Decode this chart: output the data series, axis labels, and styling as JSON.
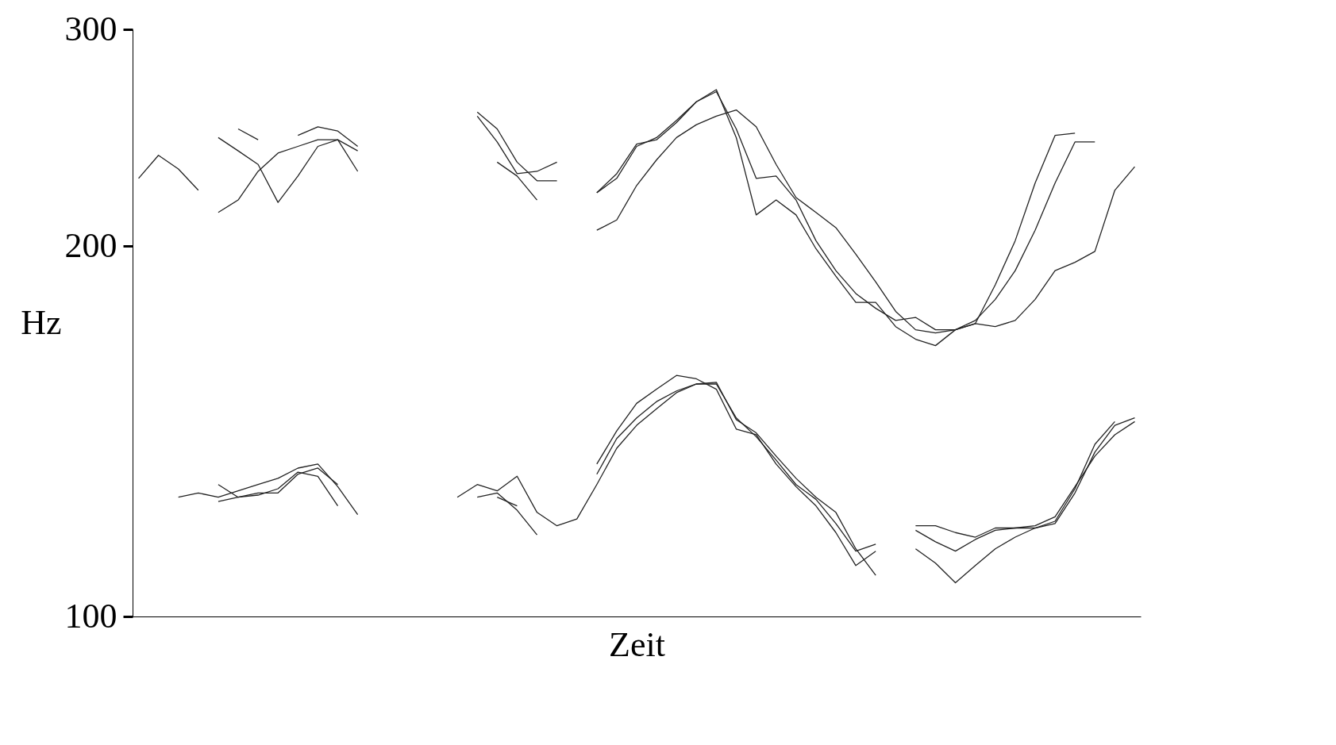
{
  "chart_data": {
    "type": "line",
    "xlabel": "Zeit",
    "ylabel": "Hz",
    "log": true,
    "ylim": [
      100,
      300
    ],
    "yticks": [
      100,
      200,
      300
    ],
    "tick_labels": "y",
    "grid": false,
    "legend": false,
    "categories": [
      null,
      null,
      null,
      null,
      null,
      null,
      null,
      null,
      null,
      null,
      null,
      null,
      null,
      null,
      null,
      null,
      null,
      null,
      null,
      null,
      null,
      null,
      null,
      null,
      null,
      null,
      null,
      null,
      null,
      null,
      null,
      null,
      null,
      null,
      null,
      null,
      null,
      null,
      null,
      null,
      null,
      null,
      null,
      null,
      null,
      null,
      null,
      null,
      null,
      null,
      null
    ],
    "series": [
      {
        "color": "#222222",
        "values": [
          227,
          237,
          231,
          222,
          null,
          null,
          null,
          null,
          null,
          null,
          null,
          null,
          null,
          null,
          null,
          null,
          null,
          null,
          null,
          null,
          null,
          null,
          null,
          null,
          null,
          null,
          null,
          null,
          null,
          null,
          null,
          null,
          null,
          null,
          null,
          null,
          null,
          null,
          null,
          null,
          null,
          null,
          null,
          null,
          null,
          null,
          null,
          null,
          null,
          null,
          null
        ]
      },
      {
        "color": "#222222",
        "values": [
          null,
          null,
          null,
          null,
          null,
          249,
          244,
          null,
          null,
          null,
          null,
          null,
          null,
          null,
          null,
          null,
          null,
          null,
          null,
          null,
          null,
          null,
          null,
          null,
          null,
          null,
          null,
          null,
          null,
          null,
          null,
          null,
          null,
          null,
          null,
          null,
          null,
          null,
          null,
          null,
          null,
          null,
          null,
          null,
          null,
          null,
          null,
          null,
          null,
          null,
          null
        ]
      },
      {
        "color": "#222222",
        "values": [
          null,
          null,
          null,
          null,
          null,
          null,
          null,
          null,
          246,
          250,
          248,
          241,
          null,
          null,
          null,
          null,
          null,
          null,
          null,
          null,
          null,
          null,
          null,
          null,
          null,
          null,
          null,
          null,
          null,
          null,
          null,
          null,
          null,
          null,
          null,
          null,
          null,
          null,
          null,
          null,
          null,
          null,
          null,
          null,
          null,
          null,
          null,
          null,
          null,
          null,
          null
        ]
      },
      {
        "color": "#222222",
        "values": [
          null,
          null,
          null,
          null,
          null,
          null,
          null,
          null,
          null,
          null,
          null,
          null,
          null,
          null,
          null,
          null,
          null,
          257,
          249,
          234,
          226,
          226,
          null,
          null,
          null,
          null,
          null,
          null,
          null,
          null,
          null,
          null,
          null,
          null,
          null,
          null,
          null,
          null,
          null,
          null,
          null,
          null,
          null,
          null,
          null,
          null,
          null,
          null,
          null,
          null,
          null
        ]
      },
      {
        "color": "#222222",
        "values": [
          null,
          null,
          null,
          null,
          null,
          null,
          null,
          null,
          null,
          null,
          null,
          null,
          null,
          null,
          null,
          null,
          null,
          null,
          null,
          null,
          null,
          null,
          null,
          221,
          229,
          242,
          244,
          252,
          262,
          268,
          245,
          212,
          218,
          212,
          199,
          189,
          180,
          180,
          172,
          168,
          166,
          171,
          173,
          186,
          202,
          225,
          246,
          247,
          null,
          null,
          null
        ]
      },
      {
        "color": "#222222",
        "values": [
          null,
          null,
          null,
          null,
          245,
          239,
          233,
          217,
          228,
          241,
          244,
          230,
          null,
          null,
          null,
          null,
          null,
          null,
          null,
          null,
          null,
          null,
          null,
          null,
          null,
          null,
          null,
          null,
          null,
          null,
          null,
          null,
          null,
          null,
          null,
          null,
          null,
          null,
          null,
          null,
          null,
          null,
          null,
          null,
          null,
          null,
          null,
          null,
          null,
          null,
          null
        ]
      },
      {
        "color": "#222222",
        "values": [
          null,
          null,
          null,
          null,
          null,
          null,
          null,
          null,
          null,
          null,
          null,
          null,
          null,
          null,
          null,
          null,
          null,
          255,
          243,
          229,
          230,
          234,
          null,
          null,
          null,
          null,
          null,
          null,
          null,
          null,
          null,
          null,
          null,
          null,
          null,
          null,
          null,
          null,
          null,
          null,
          null,
          null,
          null,
          null,
          null,
          null,
          null,
          null,
          null,
          null,
          null
        ]
      },
      {
        "color": "#222222",
        "values": [
          null,
          null,
          null,
          null,
          null,
          null,
          null,
          null,
          null,
          null,
          null,
          null,
          null,
          null,
          null,
          null,
          null,
          null,
          null,
          null,
          null,
          null,
          null,
          221,
          227,
          241,
          245,
          253,
          262,
          267,
          249,
          227,
          228,
          218,
          202,
          191,
          183,
          178,
          174,
          175,
          171,
          171,
          174,
          181,
          191,
          206,
          225,
          243,
          243,
          null,
          null
        ]
      },
      {
        "color": "#222222",
        "values": [
          null,
          null,
          null,
          null,
          213,
          218,
          230,
          238,
          241,
          244,
          244,
          239,
          null,
          null,
          null,
          null,
          null,
          null,
          null,
          null,
          null,
          null,
          null,
          null,
          null,
          null,
          null,
          null,
          null,
          null,
          null,
          null,
          null,
          null,
          null,
          null,
          null,
          null,
          null,
          null,
          null,
          null,
          null,
          null,
          null,
          null,
          null,
          null,
          null,
          null,
          null
        ]
      },
      {
        "color": "#222222",
        "values": [
          null,
          null,
          null,
          null,
          null,
          null,
          null,
          null,
          null,
          null,
          null,
          null,
          null,
          null,
          null,
          null,
          null,
          null,
          234,
          228,
          218,
          null,
          null,
          null,
          null,
          null,
          null,
          null,
          null,
          null,
          null,
          null,
          null,
          null,
          null,
          null,
          null,
          null,
          null,
          null,
          null,
          null,
          null,
          null,
          null,
          null,
          null,
          null,
          null,
          null,
          null
        ]
      },
      {
        "color": "#222222",
        "values": [
          null,
          null,
          null,
          null,
          null,
          null,
          null,
          null,
          null,
          null,
          null,
          null,
          null,
          null,
          null,
          null,
          null,
          null,
          null,
          null,
          null,
          null,
          null,
          206,
          210,
          224,
          235,
          245,
          251,
          255,
          258,
          250,
          233,
          219,
          213,
          207,
          197,
          187,
          177,
          171,
          170,
          171,
          173,
          172,
          174,
          181,
          191,
          194,
          198,
          222,
          232
        ]
      },
      {
        "color": "#222222",
        "values": [
          null,
          null,
          125,
          126,
          125,
          126.5,
          128,
          129.5,
          132,
          133,
          127.5,
          121,
          null,
          null,
          null,
          null,
          null,
          null,
          null,
          null,
          null,
          null,
          null,
          null,
          null,
          null,
          null,
          null,
          null,
          null,
          null,
          null,
          null,
          null,
          null,
          null,
          null,
          null,
          null,
          null,
          null,
          null,
          null,
          null,
          null,
          null,
          null,
          null,
          null,
          null,
          null
        ]
      },
      {
        "color": "#222222",
        "values": [
          null,
          null,
          null,
          null,
          null,
          null,
          null,
          null,
          null,
          null,
          null,
          null,
          null,
          null,
          null,
          null,
          125,
          128,
          126.5,
          130,
          121.5,
          118.5,
          120,
          128,
          137,
          143,
          147.5,
          152,
          154.5,
          154.5,
          145,
          140,
          134,
          128,
          124.5,
          119,
          113,
          114.5,
          null,
          null,
          null,
          null,
          null,
          null,
          null,
          null,
          null,
          null,
          null,
          null,
          null
        ]
      },
      {
        "color": "#222222",
        "values": [
          null,
          null,
          null,
          null,
          null,
          null,
          null,
          null,
          null,
          null,
          null,
          null,
          null,
          null,
          null,
          null,
          null,
          null,
          null,
          null,
          null,
          null,
          null,
          null,
          null,
          null,
          null,
          null,
          null,
          null,
          null,
          null,
          null,
          null,
          null,
          null,
          null,
          null,
          null,
          117.5,
          115,
          113,
          115.5,
          117.5,
          118,
          118,
          119.5,
          127,
          138,
          144,
          null
        ]
      },
      {
        "color": "#222222",
        "values": [
          null,
          null,
          null,
          null,
          128,
          125,
          125.5,
          127,
          131,
          130,
          123,
          null,
          null,
          null,
          null,
          null,
          null,
          null,
          null,
          null,
          null,
          null,
          null,
          null,
          null,
          null,
          null,
          null,
          null,
          null,
          null,
          null,
          null,
          null,
          null,
          null,
          null,
          null,
          null,
          null,
          null,
          null,
          null,
          null,
          null,
          null,
          null,
          null,
          null,
          null,
          null
        ]
      },
      {
        "color": "#222222",
        "values": [
          null,
          null,
          null,
          null,
          null,
          null,
          null,
          null,
          null,
          null,
          null,
          null,
          null,
          null,
          null,
          null,
          null,
          125,
          126,
          122,
          116.5,
          null,
          null,
          null,
          null,
          null,
          null,
          null,
          null,
          null,
          null,
          null,
          null,
          null,
          null,
          null,
          null,
          null,
          null,
          null,
          null,
          null,
          null,
          null,
          null,
          null,
          null,
          null,
          null,
          null,
          null
        ]
      },
      {
        "color": "#222222",
        "values": [
          null,
          null,
          null,
          null,
          null,
          null,
          null,
          null,
          null,
          null,
          null,
          null,
          null,
          null,
          null,
          null,
          null,
          null,
          null,
          null,
          null,
          null,
          null,
          133,
          141.5,
          149,
          153,
          157,
          156,
          153,
          142,
          140.5,
          133,
          127.5,
          123,
          117,
          110,
          113,
          null,
          null,
          null,
          null,
          null,
          null,
          null,
          null,
          null,
          null,
          null,
          null,
          null
        ]
      },
      {
        "color": "#222222",
        "values": [
          null,
          null,
          null,
          null,
          null,
          null,
          null,
          null,
          null,
          null,
          null,
          null,
          null,
          null,
          null,
          null,
          null,
          null,
          null,
          null,
          null,
          null,
          null,
          null,
          null,
          null,
          null,
          null,
          null,
          null,
          null,
          null,
          null,
          null,
          null,
          null,
          null,
          null,
          null,
          113.5,
          110.5,
          106.5,
          110,
          113.5,
          116,
          118,
          119,
          126,
          136,
          143,
          145
        ]
      },
      {
        "color": "#222222",
        "values": [
          null,
          null,
          null,
          null,
          124,
          125,
          126,
          126,
          130.5,
          132,
          128,
          null,
          null,
          null,
          null,
          null,
          null,
          null,
          null,
          null,
          null,
          null,
          null,
          null,
          null,
          null,
          null,
          null,
          null,
          null,
          null,
          null,
          null,
          null,
          null,
          null,
          null,
          null,
          null,
          null,
          null,
          null,
          null,
          null,
          null,
          null,
          null,
          null,
          null,
          null,
          null
        ]
      },
      {
        "color": "#222222",
        "values": [
          null,
          null,
          null,
          null,
          null,
          null,
          null,
          null,
          null,
          null,
          null,
          null,
          null,
          null,
          null,
          null,
          null,
          null,
          125,
          123,
          null,
          null,
          null,
          null,
          null,
          null,
          null,
          null,
          null,
          null,
          null,
          null,
          null,
          null,
          null,
          null,
          null,
          null,
          null,
          null,
          null,
          null,
          null,
          null,
          null,
          null,
          null,
          null,
          null,
          null,
          null
        ]
      },
      {
        "color": "#222222",
        "values": [
          null,
          null,
          null,
          null,
          null,
          null,
          null,
          null,
          null,
          null,
          null,
          null,
          null,
          null,
          null,
          null,
          null,
          null,
          null,
          null,
          null,
          null,
          null,
          130.5,
          139.5,
          145,
          149.5,
          152.5,
          154.5,
          155,
          144.5,
          141,
          135,
          129.5,
          125,
          121.5,
          113.5,
          108,
          null,
          null,
          null,
          null,
          null,
          null,
          null,
          null,
          null,
          null,
          null,
          null,
          null
        ]
      },
      {
        "color": "#222222",
        "values": [
          null,
          null,
          null,
          null,
          null,
          null,
          null,
          null,
          null,
          null,
          null,
          null,
          null,
          null,
          null,
          null,
          null,
          null,
          null,
          null,
          null,
          null,
          null,
          null,
          null,
          null,
          null,
          null,
          null,
          null,
          null,
          null,
          null,
          null,
          null,
          null,
          null,
          null,
          null,
          118.5,
          118.5,
          117,
          116,
          118,
          118,
          118.5,
          120.5,
          127.5,
          135,
          140.5,
          144
        ]
      }
    ]
  }
}
